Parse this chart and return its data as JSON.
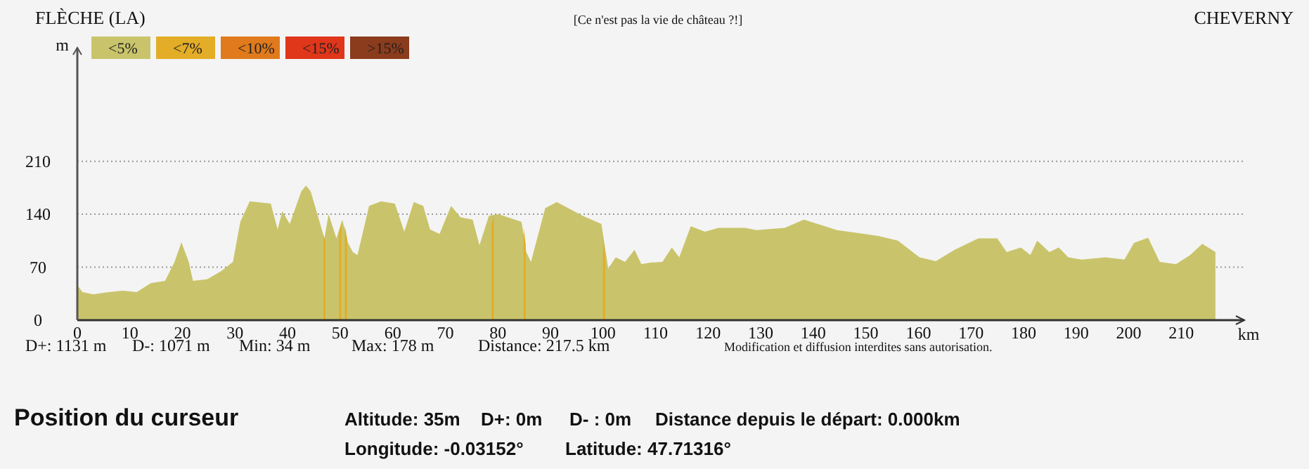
{
  "chart_data": {
    "type": "area",
    "title": "[Ce n'est pas la vie de château ?!]",
    "xlabel": "km",
    "ylabel": "m",
    "xlim": [
      0,
      222
    ],
    "ylim": [
      0,
      360
    ],
    "xticks": [
      0,
      10,
      20,
      30,
      40,
      50,
      60,
      70,
      80,
      90,
      100,
      110,
      120,
      130,
      140,
      150,
      160,
      170,
      180,
      190,
      200,
      210
    ],
    "yticks": [
      0,
      70,
      140,
      210
    ],
    "grid": "y",
    "legend": "top left",
    "series": [
      {
        "name": "<5%",
        "color": "#c9c46b",
        "x": [
          0,
          1,
          3,
          6,
          8.7,
          11.3,
          14,
          16.7,
          18.5,
          19.8,
          21.2,
          22,
          24.7,
          27.4,
          29.6,
          31,
          32.8,
          36.8,
          38.1,
          39,
          40.4,
          42.6,
          43.5,
          44.4,
          47,
          47.8,
          49.3,
          50.4,
          51.5,
          52.4,
          53.3,
          55.5,
          57.8,
          60.4,
          62.2,
          64,
          65.8,
          67.1,
          68.9,
          71.1,
          72.9,
          75.2,
          76.5,
          78.3,
          80.1,
          84.5,
          85.4,
          86.3,
          89,
          91.2,
          96.1,
          99.7,
          101,
          102.4,
          104.2,
          106,
          107.3,
          109,
          111.3,
          113.1,
          114.5,
          116.7,
          119.4,
          122,
          127,
          129.2,
          134.6,
          138.2,
          141.8,
          144.5,
          149.8,
          152.5,
          156.1,
          160.2,
          163.3,
          166.9,
          171.4,
          175,
          176.8,
          179.5,
          181.3,
          182.6,
          184.9,
          186.7,
          188.5,
          191.1,
          195.6,
          199.2,
          201,
          203.7,
          205.9,
          209,
          211.7,
          214,
          216.5
        ],
        "values": [
          46,
          37,
          34,
          37,
          39,
          37,
          49,
          52,
          77,
          103,
          77,
          52,
          54,
          65,
          77,
          130,
          157,
          154,
          120,
          144,
          127,
          170,
          178,
          170,
          108,
          140,
          108,
          133,
          102,
          90,
          86,
          151,
          157,
          154,
          117,
          156,
          151,
          120,
          114,
          151,
          136,
          133,
          99,
          138,
          140,
          130,
          90,
          77,
          148,
          156,
          138,
          127,
          68,
          83,
          77,
          93,
          74,
          76,
          77,
          96,
          83,
          124,
          117,
          122,
          122,
          119,
          122,
          133,
          125,
          119,
          114,
          111,
          105,
          83,
          78,
          93,
          108,
          108,
          90,
          96,
          86,
          105,
          90,
          96,
          83,
          80,
          83,
          80,
          102,
          109,
          77,
          74,
          86,
          101,
          90
        ]
      },
      {
        "name": "<7%",
        "color": "#e3ad27",
        "x": [
          46.8,
          47.2,
          47.3,
          49.8,
          50.2,
          50.3,
          50.9,
          51.3,
          51.4,
          78.8,
          79.2,
          79.3,
          84.9,
          85.3,
          85.4,
          100.0,
          100.4
        ],
        "values": [
          112,
          104,
          null,
          115,
          128,
          null,
          125,
          108,
          null,
          126,
          139,
          null,
          122,
          100,
          null,
          110,
          85
        ]
      },
      {
        "name": "<10%",
        "color": "#e07a1c"
      },
      {
        "name": "<15%",
        "color": "#e0361a"
      },
      {
        "name": ">15%",
        "color": "#8b3c1c"
      }
    ],
    "annotations": [
      "FLÈCHE (LA)",
      "CHEVERNY",
      "D+: 1131 m",
      "D-: 1071 m",
      "Min: 34 m",
      "Max: 178 m",
      "Distance: 217.5 km",
      "Modification et diffusion interdites sans autorisation.",
      "Position du curseur",
      "Altitude: 35m",
      "D+: 0m",
      "D- : 0m",
      "Distance depuis le départ: 0.000km",
      "Longitude: -0.03152°",
      "Latitude: 47.71316°"
    ]
  }
}
